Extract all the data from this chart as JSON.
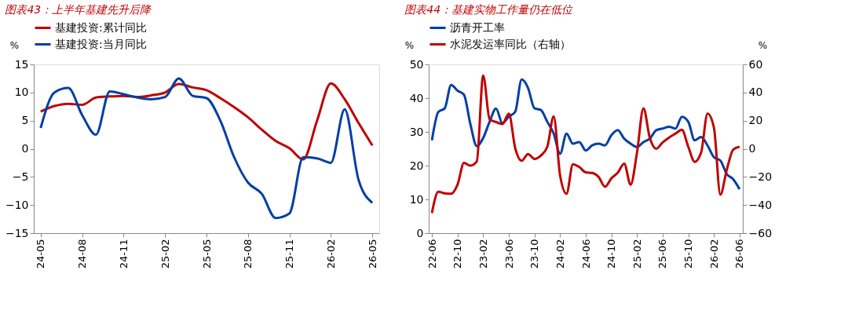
{
  "chart_data": [
    {
      "type": "line",
      "title": "图表43：上半年基建先升后降",
      "ylabel": "%",
      "legend": "top",
      "categories": [
        "24-05",
        null,
        null,
        "24-08",
        null,
        null,
        "24-11",
        null,
        null,
        "25-02",
        null,
        null,
        "25-05",
        null,
        null,
        "25-08",
        null,
        null,
        "25-11",
        null,
        null,
        "26-02",
        null,
        null,
        "26-05"
      ],
      "ylim": [
        -15,
        15
      ],
      "yticks": [
        -15,
        -10,
        -5,
        0,
        5,
        10,
        15
      ],
      "series": [
        {
          "name": "基建投资:累计同比",
          "color": "#c00000",
          "values": [
            6.6,
            7.6,
            8.0,
            7.8,
            9.1,
            9.3,
            9.4,
            9.2,
            9.5,
            10.0,
            11.5,
            10.9,
            10.4,
            9.0,
            7.4,
            5.6,
            3.4,
            1.4,
            0.1,
            -1.9,
            5.0,
            11.6,
            8.8,
            4.6,
            0.6
          ]
        },
        {
          "name": "基建投资:当月同比",
          "color": "#003fa5",
          "values": [
            3.7,
            10.0,
            10.8,
            6.0,
            2.5,
            10.2,
            9.7,
            9.1,
            8.8,
            9.2,
            12.5,
            9.4,
            9.0,
            5.0,
            -1.5,
            -6.0,
            -8.0,
            -12.3,
            -11.5,
            -1.5,
            -1.7,
            -2.5,
            7.0,
            -5.5,
            -9.6
          ]
        }
      ]
    },
    {
      "type": "line",
      "title": "图表44：基建实物工作量仍在低位",
      "ylabel": "%",
      "y2label": "%",
      "legend": "top",
      "categories": [
        "22-06",
        null,
        null,
        null,
        "22-10",
        null,
        null,
        null,
        "23-02",
        null,
        null,
        null,
        "23-06",
        null,
        null,
        null,
        "23-10",
        null,
        null,
        null,
        "24-02",
        null,
        null,
        null,
        "24-06",
        null,
        null,
        null,
        "24-10",
        null,
        null,
        null,
        "25-02",
        null,
        null,
        null,
        "25-06",
        null,
        null,
        null,
        "25-10",
        null,
        null,
        null,
        "26-02",
        null,
        null,
        null,
        "26-06"
      ],
      "ylim": [
        0,
        50
      ],
      "yticks": [
        0,
        10,
        20,
        30,
        40,
        50
      ],
      "y2lim": [
        -60,
        60
      ],
      "y2ticks": [
        -60,
        -40,
        -20,
        0,
        20,
        40,
        60
      ],
      "series": [
        {
          "name": "沥青开工率",
          "color": "#003fa5",
          "values": [
            27.5,
            35.9,
            37,
            43.9,
            42.2,
            41,
            32.3,
            25.8,
            28.2,
            33,
            36.9,
            32.6,
            34.5,
            36,
            45.5,
            43,
            37,
            36.5,
            33,
            29.5,
            23.5,
            29.5,
            26.5,
            27,
            24.5,
            26,
            26.5,
            26,
            29,
            30.5,
            28,
            26.5,
            25.5,
            27,
            28,
            30.5,
            31,
            31.5,
            31,
            34.5,
            33,
            27.5,
            28.5,
            26,
            22.5,
            21.5,
            17.5,
            16,
            13
          ]
        },
        {
          "name": "水泥发运率同比（右轴）",
          "color": "#c00000",
          "axis": "y2",
          "values": [
            -45.7,
            -30.6,
            -31.7,
            -32,
            -25.5,
            -10,
            -12,
            -9,
            52,
            21,
            19,
            17.6,
            25,
            0.4,
            -8.5,
            -3.7,
            -7.2,
            -4.8,
            1.4,
            23,
            -19,
            -32,
            -11,
            -13,
            -16.8,
            -17.2,
            -20,
            -27,
            -21,
            -17,
            -10.6,
            -25.5,
            -2.7,
            28.8,
            7.7,
            0,
            4.5,
            8,
            10.8,
            13.5,
            1.4,
            -9.3,
            -2.7,
            25,
            15,
            -32.7,
            -15,
            -0.6,
            1.4
          ]
        }
      ]
    }
  ]
}
